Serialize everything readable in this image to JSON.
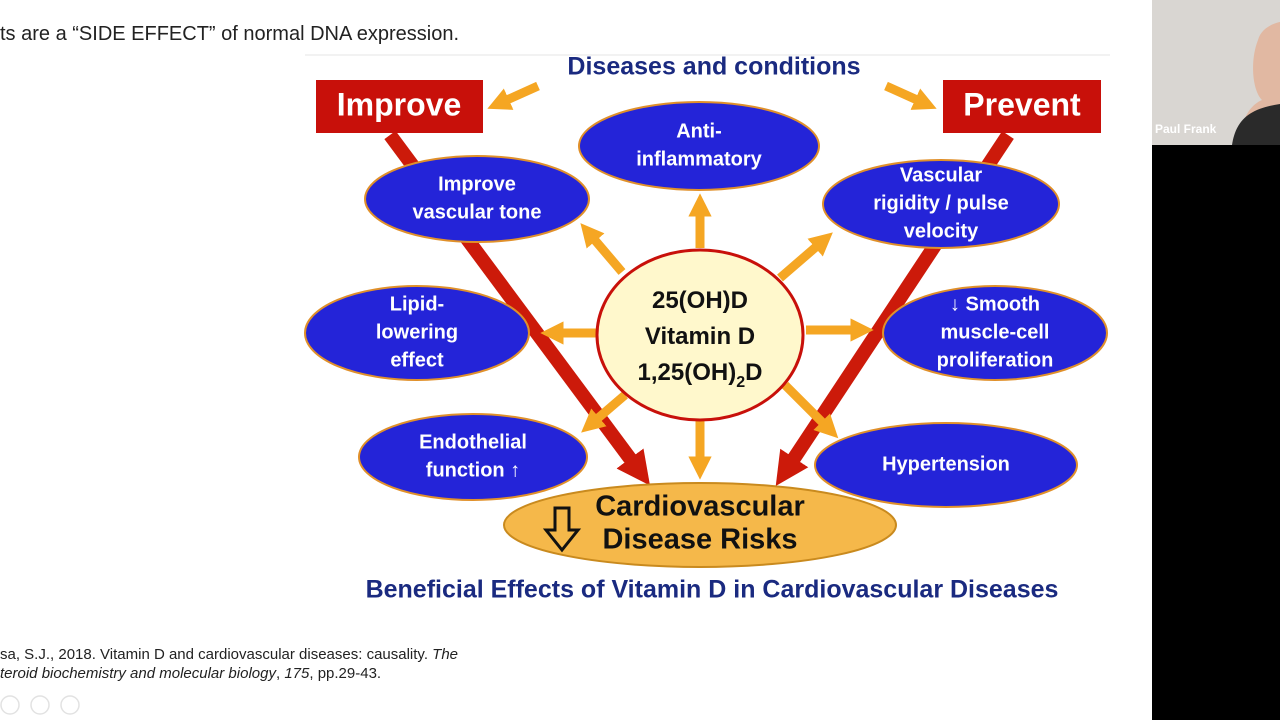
{
  "slide": {
    "heading": "ts are a “SIDE EFFECT” of normal DNA expression.",
    "diagram": {
      "top_label": "Diseases and conditions",
      "improve": "Improve",
      "prevent": "Prevent",
      "center": {
        "line1": "25(OH)D",
        "line2": "Vitamin D",
        "line3": {
          "before": "1,25(OH)",
          "sub": "2",
          "after": "D"
        }
      },
      "nodes": [
        {
          "lines": [
            "Anti-",
            "inflammatory"
          ]
        },
        {
          "lines": [
            "Improve",
            "vascular tone"
          ]
        },
        {
          "lines": [
            "Vascular",
            "rigidity / pulse",
            "velocity"
          ]
        },
        {
          "lines": [
            "Lipid-",
            "lowering",
            "effect"
          ]
        },
        {
          "lines": [
            "↓ Smooth",
            "muscle-cell",
            "proliferation"
          ]
        },
        {
          "lines": [
            "Endothelial",
            "function ↑"
          ]
        },
        {
          "lines": [
            "Hypertension"
          ]
        }
      ],
      "outcome": [
        "Cardiovascular",
        "Disease Risks"
      ],
      "caption": "Beneficial Effects of Vitamin D in Cardiovascular Diseases"
    },
    "citation": {
      "line1": [
        {
          "text": "sa, S.J., 2018. Vitamin D and cardiovascular diseases: causality. ",
          "italic": false
        },
        {
          "text": "The",
          "italic": true
        }
      ],
      "line2": [
        {
          "text": "teroid biochemistry and molecular biology",
          "italic": true
        },
        {
          "text": ", ",
          "italic": false
        },
        {
          "text": "175",
          "italic": true
        },
        {
          "text": ", pp.29-43.",
          "italic": false
        }
      ]
    }
  },
  "participant": {
    "name": "Paul Frank"
  }
}
